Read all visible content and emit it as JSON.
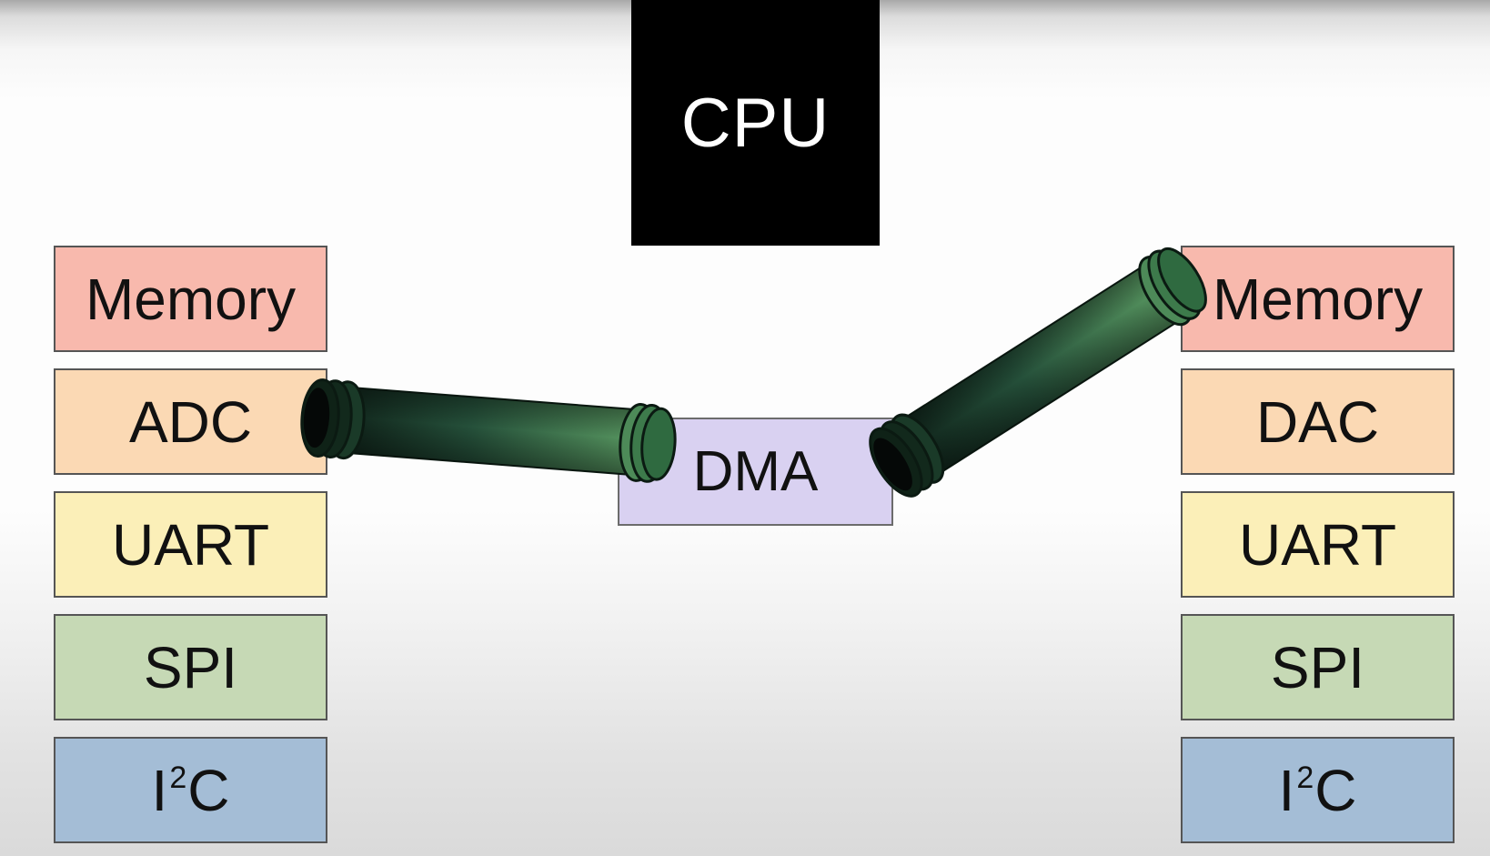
{
  "cpu": {
    "label": "CPU"
  },
  "dma": {
    "label": "DMA"
  },
  "left_stack": {
    "memory": "Memory",
    "adc": "ADC",
    "uart": "UART",
    "spi": "SPI",
    "i2c": {
      "base": "I",
      "sup": "2",
      "tail": "C"
    }
  },
  "right_stack": {
    "memory": "Memory",
    "dac": "DAC",
    "uart": "UART",
    "spi": "SPI",
    "i2c": {
      "base": "I",
      "sup": "2",
      "tail": "C"
    }
  },
  "colors": {
    "memory": "#f8b9ad",
    "adc_dac": "#fbd9b4",
    "uart": "#fbefb8",
    "spi": "#c6d9b5",
    "i2c": "#a4bdd6",
    "dma": "#d9d1f1",
    "cpu": "#000000",
    "pipe": "#3f7b4c"
  },
  "connections": [
    {
      "from": "ADC",
      "to": "DMA",
      "icon": "pipe-icon"
    },
    {
      "from": "DMA",
      "to": "Memory",
      "icon": "pipe-icon"
    }
  ]
}
